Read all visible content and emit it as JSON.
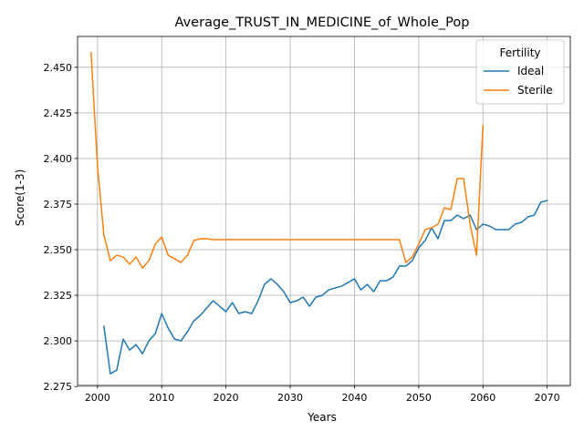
{
  "chart_data": {
    "type": "line",
    "title": "Average_TRUST_IN_MEDICINE_of_Whole_Pop",
    "xlabel": "Years",
    "ylabel": "Score(1-3)",
    "xlim": [
      1996.9,
      2073.6
    ],
    "ylim": [
      2.2756,
      2.4669
    ],
    "x_ticks": [
      2000,
      2010,
      2020,
      2030,
      2040,
      2050,
      2060,
      2070
    ],
    "y_ticks": [
      2.275,
      2.3,
      2.325,
      2.35,
      2.375,
      2.4,
      2.425,
      2.45
    ],
    "y_tick_labels": [
      "2.275",
      "2.300",
      "2.325",
      "2.350",
      "2.375",
      "2.400",
      "2.425",
      "2.450"
    ],
    "grid": true,
    "legend": {
      "title": "Fertility",
      "placement": "top-right"
    },
    "series": [
      {
        "name": "Ideal",
        "color": "#1f77b4",
        "x": [
          2001,
          2002,
          2003,
          2004,
          2005,
          2006,
          2007,
          2008,
          2009,
          2010,
          2011,
          2012,
          2013,
          2014,
          2015,
          2016,
          2017,
          2018,
          2019,
          2020,
          2021,
          2022,
          2023,
          2024,
          2025,
          2026,
          2027,
          2028,
          2029,
          2030,
          2031,
          2032,
          2033,
          2034,
          2035,
          2036,
          2037,
          2038,
          2039,
          2040,
          2041,
          2042,
          2043,
          2044,
          2045,
          2046,
          2047,
          2048,
          2049,
          2050,
          2051,
          2052,
          2053,
          2054,
          2055,
          2056,
          2057,
          2058,
          2059,
          2060,
          2061,
          2062,
          2063,
          2064,
          2065,
          2066,
          2067,
          2068,
          2069,
          2070
        ],
        "values": [
          2.308,
          2.282,
          2.284,
          2.301,
          2.295,
          2.298,
          2.293,
          2.3,
          2.304,
          2.315,
          2.307,
          2.301,
          2.3,
          2.305,
          2.311,
          2.314,
          2.318,
          2.322,
          2.319,
          2.316,
          2.321,
          2.315,
          2.316,
          2.315,
          2.322,
          2.331,
          2.334,
          2.331,
          2.327,
          2.321,
          2.322,
          2.324,
          2.319,
          2.324,
          2.325,
          2.328,
          2.329,
          2.33,
          2.332,
          2.334,
          2.328,
          2.331,
          2.327,
          2.333,
          2.333,
          2.335,
          2.341,
          2.341,
          2.344,
          2.351,
          2.355,
          2.362,
          2.356,
          2.366,
          2.366,
          2.369,
          2.367,
          2.369,
          2.361,
          2.364,
          2.363,
          2.361,
          2.361,
          2.361,
          2.364,
          2.365,
          2.368,
          2.369,
          2.376,
          2.377
        ]
      },
      {
        "name": "Sterile",
        "color": "#ff7f0e",
        "x": [
          1999,
          2000,
          2001,
          2002,
          2003,
          2004,
          2005,
          2006,
          2007,
          2008,
          2009,
          2010,
          2011,
          2012,
          2013,
          2014,
          2015,
          2016,
          2017,
          2018,
          2019,
          2020,
          2025,
          2030,
          2035,
          2040,
          2045,
          2047,
          2048,
          2049,
          2050,
          2051,
          2052,
          2053,
          2054,
          2055,
          2056,
          2057,
          2058,
          2059,
          2060
        ],
        "values": [
          2.458,
          2.396,
          2.358,
          2.344,
          2.347,
          2.346,
          2.342,
          2.346,
          2.34,
          2.344,
          2.353,
          2.357,
          2.347,
          2.345,
          2.343,
          2.347,
          2.355,
          2.356,
          2.356,
          2.3555,
          2.3555,
          2.3555,
          2.3555,
          2.3555,
          2.3555,
          2.3555,
          2.3555,
          2.3555,
          2.343,
          2.346,
          2.353,
          2.361,
          2.362,
          2.364,
          2.373,
          2.372,
          2.389,
          2.389,
          2.364,
          2.347,
          2.418
        ]
      }
    ]
  }
}
